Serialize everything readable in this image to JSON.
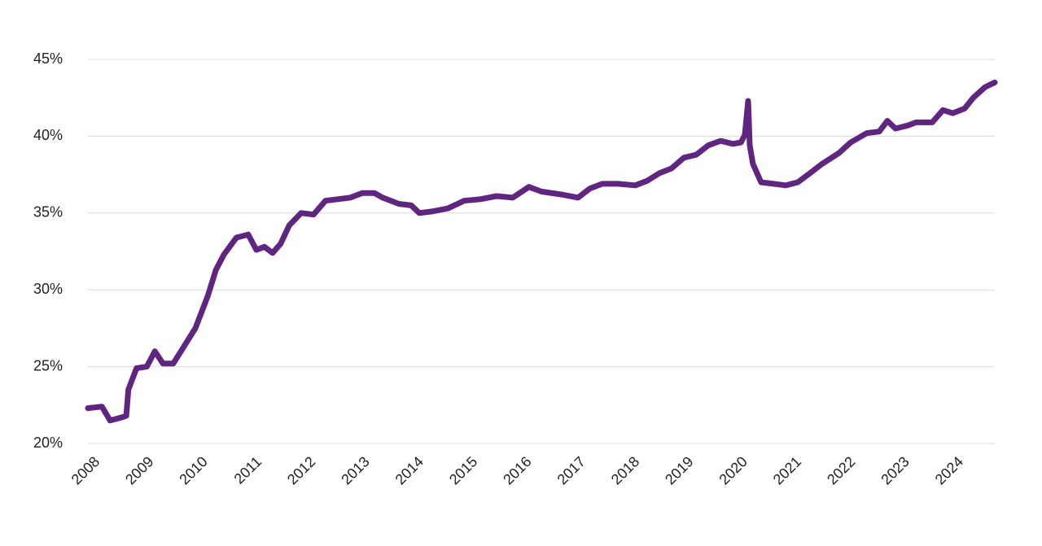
{
  "chart_data": {
    "type": "line",
    "x": [
      2008.0,
      2008.26,
      2008.41,
      2008.63,
      2008.71,
      2008.75,
      2008.9,
      2009.09,
      2009.24,
      2009.39,
      2009.58,
      2009.76,
      2009.99,
      2010.22,
      2010.37,
      2010.52,
      2010.75,
      2010.97,
      2011.12,
      2011.27,
      2011.42,
      2011.57,
      2011.73,
      2011.95,
      2012.18,
      2012.4,
      2012.63,
      2012.86,
      2013.08,
      2013.31,
      2013.46,
      2013.76,
      2013.99,
      2014.14,
      2014.37,
      2014.67,
      2014.97,
      2015.27,
      2015.57,
      2015.87,
      2016.17,
      2016.4,
      2016.78,
      2017.08,
      2017.3,
      2017.53,
      2017.83,
      2018.14,
      2018.36,
      2018.59,
      2018.81,
      2019.04,
      2019.27,
      2019.49,
      2019.72,
      2019.95,
      2020.1,
      2020.17,
      2020.23,
      2020.26,
      2020.32,
      2020.47,
      2020.7,
      2020.93,
      2021.15,
      2021.38,
      2021.6,
      2021.91,
      2022.13,
      2022.43,
      2022.66,
      2022.81,
      2022.96,
      2023.19,
      2023.34,
      2023.64,
      2023.84,
      2024.02,
      2024.24,
      2024.4,
      2024.62,
      2024.8
    ],
    "series": [
      {
        "color": "#5f2580",
        "values": [
          22.3,
          22.4,
          21.5,
          21.7,
          21.8,
          23.5,
          24.9,
          25.0,
          26.0,
          25.2,
          25.2,
          26.2,
          27.5,
          29.6,
          31.3,
          32.3,
          33.4,
          33.6,
          32.6,
          32.8,
          32.4,
          33.0,
          34.2,
          35.0,
          34.9,
          35.8,
          35.9,
          36.0,
          36.3,
          36.3,
          36.0,
          35.6,
          35.5,
          35.0,
          35.1,
          35.3,
          35.8,
          35.9,
          36.1,
          36.0,
          36.7,
          36.4,
          36.2,
          36.0,
          36.6,
          36.9,
          36.9,
          36.8,
          37.1,
          37.6,
          37.9,
          38.6,
          38.8,
          39.4,
          39.7,
          39.5,
          39.6,
          40.1,
          42.3,
          39.4,
          38.2,
          37.0,
          36.9,
          36.8,
          37.0,
          37.6,
          38.2,
          38.9,
          39.6,
          40.2,
          40.3,
          41.0,
          40.5,
          40.7,
          40.9,
          40.9,
          41.7,
          41.5,
          41.8,
          42.5,
          43.2,
          43.5
        ]
      }
    ],
    "xlim": [
      2008,
      2024.8
    ],
    "xticks": [
      2008,
      2009,
      2010,
      2011,
      2012,
      2013,
      2014,
      2015,
      2016,
      2017,
      2018,
      2019,
      2020,
      2021,
      2022,
      2023,
      2024
    ],
    "ylim": [
      20,
      45
    ],
    "yticks": [
      {
        "value": 20,
        "label": "20%"
      },
      {
        "value": 25,
        "label": "25%"
      },
      {
        "value": 30,
        "label": "30%"
      },
      {
        "value": 35,
        "label": "35%"
      },
      {
        "value": 40,
        "label": "40%"
      },
      {
        "value": 45,
        "label": "45%"
      }
    ],
    "grid": true
  }
}
